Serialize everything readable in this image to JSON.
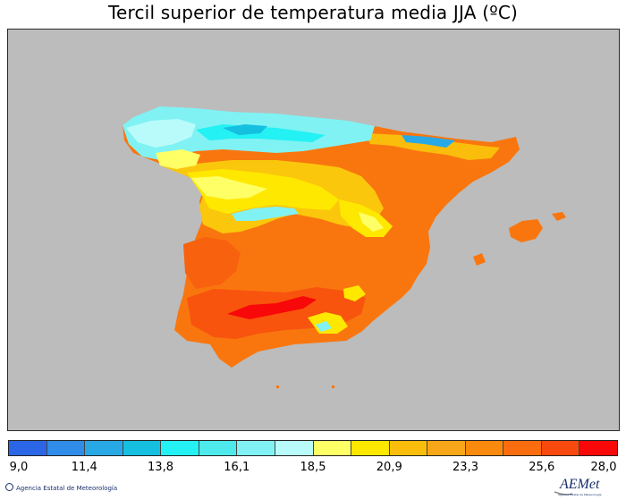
{
  "title": "Tercil superior de temperatura media JJA (ºC)",
  "legend": {
    "colors": [
      "#2a66e6",
      "#2f8ce8",
      "#28a9e6",
      "#15bfe0",
      "#24f1f3",
      "#4de9eb",
      "#80f2f3",
      "#b9fbfb",
      "#ffff66",
      "#ffe800",
      "#fbbd0c",
      "#f9a718",
      "#f98a0e",
      "#f96d0e",
      "#f84a0e",
      "#f80808"
    ],
    "tick_labels": [
      "9,0",
      "11,4",
      "13,8",
      "16,1",
      "18,5",
      "20,9",
      "23,3",
      "25,6",
      "28,0"
    ],
    "min": 9.0,
    "max": 28.0
  },
  "footer": {
    "agency": "Agencia Estatal de Meteorología",
    "logo_text": "AEMet",
    "logo_subtext": "Agencia Estatal de Meteorología"
  }
}
